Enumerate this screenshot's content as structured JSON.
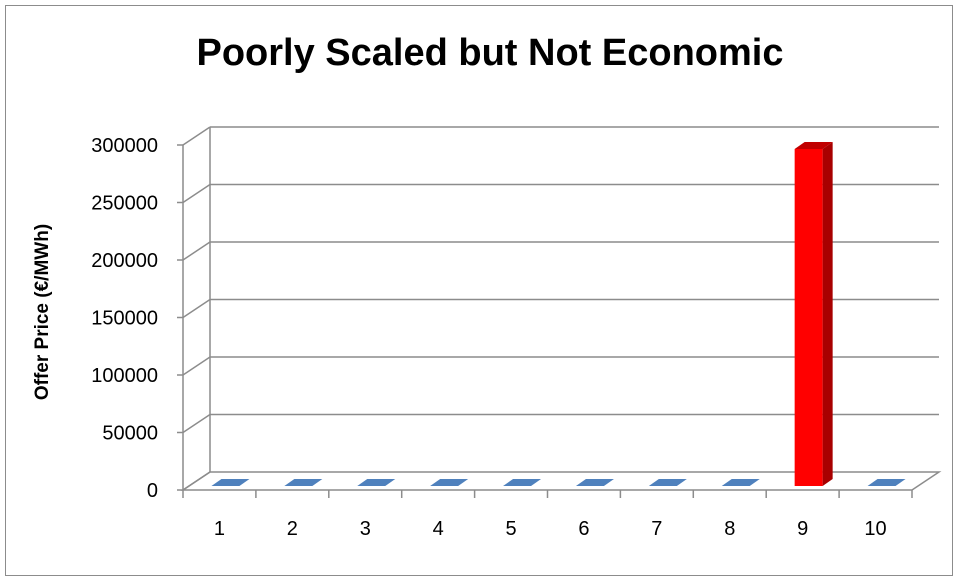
{
  "chart_data": {
    "type": "bar",
    "title": "Poorly Scaled but Not Economic",
    "xlabel": "",
    "ylabel": "Offer Price (€/MWh)",
    "categories": [
      "1",
      "2",
      "3",
      "4",
      "5",
      "6",
      "7",
      "8",
      "9",
      "10"
    ],
    "series": [
      {
        "values": [
          0,
          0,
          0,
          0,
          0,
          0,
          0,
          0,
          300000,
          0
        ],
        "colors": [
          "#4f81bd",
          "#4f81bd",
          "#4f81bd",
          "#4f81bd",
          "#4f81bd",
          "#4f81bd",
          "#4f81bd",
          "#4f81bd",
          "#ff0000",
          "#4f81bd"
        ]
      }
    ],
    "ylim": [
      0,
      300000
    ],
    "yticks": [
      "0",
      "50000",
      "100000",
      "150000",
      "200000",
      "250000",
      "300000"
    ],
    "grid": true,
    "legend": "none",
    "style": "3d-column"
  }
}
